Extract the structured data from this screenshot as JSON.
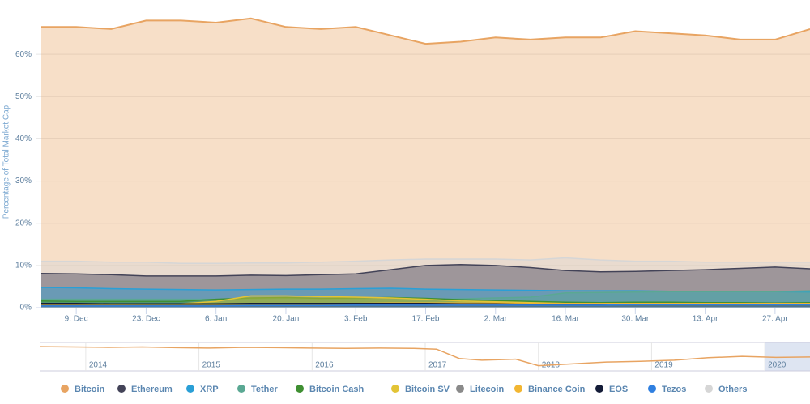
{
  "chart_data": {
    "type": "area",
    "y_axis_label": "Percentage of Total Market Cap",
    "categories": [
      null,
      "9. Dec",
      null,
      "23. Dec",
      null,
      "6. Jan",
      null,
      "20. Jan",
      null,
      "3. Feb",
      null,
      "17. Feb",
      null,
      "2. Mar",
      null,
      "16. Mar",
      null,
      "30. Mar",
      null,
      "13. Apr",
      null,
      "27. Apr",
      null
    ],
    "ylim": [
      0,
      70
    ],
    "yticks": [
      {
        "value": 0,
        "label": "0%"
      },
      {
        "value": 10,
        "label": "10%"
      },
      {
        "value": 20,
        "label": "20%"
      },
      {
        "value": 30,
        "label": "30%"
      },
      {
        "value": 40,
        "label": "40%"
      },
      {
        "value": 50,
        "label": "50%"
      },
      {
        "value": 60,
        "label": "60%"
      }
    ],
    "grid": true,
    "legend": "bottom",
    "series": [
      {
        "name": "Bitcoin",
        "color": "#e8a462",
        "values": [
          66.5,
          66.5,
          66,
          68,
          68,
          67.5,
          68.5,
          66.5,
          66,
          66.5,
          64.5,
          62.5,
          63,
          64,
          63.5,
          64,
          64,
          65.5,
          65,
          64.5,
          63.5,
          63.5,
          66
        ]
      },
      {
        "name": "Ethereum",
        "color": "#434358",
        "values": [
          8.1,
          8,
          7.8,
          7.5,
          7.5,
          7.5,
          7.7,
          7.6,
          7.8,
          8,
          9,
          10,
          10.2,
          10,
          9.5,
          8.8,
          8.5,
          8.6,
          8.8,
          9,
          9.3,
          9.6,
          9.2
        ]
      },
      {
        "name": "XRP",
        "color": "#2a9fd6",
        "values": [
          4.8,
          4.7,
          4.5,
          4.4,
          4.3,
          4.2,
          4.3,
          4.4,
          4.4,
          4.5,
          4.6,
          4.4,
          4.3,
          4.2,
          4.1,
          4,
          4,
          4,
          3.9,
          3.9,
          3.8,
          3.8,
          3.7
        ]
      },
      {
        "name": "Tether",
        "color": "#5aa893",
        "values": [
          2,
          2,
          2,
          2,
          2,
          2,
          2.1,
          2.2,
          2.2,
          2,
          1.8,
          1.9,
          2.1,
          2.3,
          2.5,
          3.5,
          3.6,
          3.7,
          3.8,
          3.8,
          3.8,
          3.8,
          4
        ]
      },
      {
        "name": "Bitcoin Cash",
        "color": "#3f8f32",
        "values": [
          1.6,
          1.5,
          1.5,
          1.5,
          1.5,
          2,
          2.3,
          2.4,
          2.2,
          2.3,
          2.4,
          2.2,
          1.9,
          1.7,
          1.5,
          1.3,
          1.2,
          1.3,
          1.3,
          1.2,
          1.2,
          1.1,
          1.2
        ]
      },
      {
        "name": "Bitcoin SV",
        "color": "#e3c436",
        "values": [
          0.7,
          0.7,
          0.7,
          0.8,
          0.9,
          1.5,
          2.8,
          2.8,
          2.6,
          2.5,
          2.3,
          2,
          1.6,
          1.4,
          1.2,
          1,
          1,
          1,
          0.9,
          0.9,
          0.9,
          0.9,
          0.9
        ]
      },
      {
        "name": "Litecoin",
        "color": "#8a8a8a",
        "values": [
          1.3,
          1.3,
          1.3,
          1.2,
          1.2,
          1.3,
          1.4,
          1.4,
          1.3,
          1.4,
          1.4,
          1.3,
          1.2,
          1.2,
          1.1,
          1.1,
          1.1,
          1.1,
          1.1,
          1.1,
          1.1,
          1.1,
          1.2
        ]
      },
      {
        "name": "Binance Coin",
        "color": "#f2b632",
        "values": [
          0.9,
          0.9,
          0.9,
          0.9,
          0.9,
          0.9,
          0.9,
          0.9,
          0.9,
          1,
          1.1,
          1.1,
          1.1,
          1.1,
          1,
          1,
          1,
          1,
          1,
          1,
          1,
          1,
          1
        ]
      },
      {
        "name": "EOS",
        "color": "#141c38",
        "values": [
          1,
          1,
          0.9,
          0.9,
          0.9,
          0.9,
          1,
          1,
          1,
          1,
          1,
          1,
          0.9,
          0.9,
          0.8,
          0.8,
          0.8,
          0.8,
          0.8,
          0.8,
          0.8,
          0.8,
          0.8
        ]
      },
      {
        "name": "Tezos",
        "color": "#2f7fe0",
        "values": [
          0.4,
          0.4,
          0.4,
          0.4,
          0.4,
          0.4,
          0.5,
          0.5,
          0.5,
          0.6,
          0.6,
          0.6,
          0.6,
          0.6,
          0.6,
          0.6,
          0.6,
          0.7,
          0.7,
          0.7,
          0.7,
          0.7,
          0.7
        ]
      },
      {
        "name": "Others",
        "color": "#d6d6d6",
        "values": [
          11,
          11,
          10.8,
          10.8,
          10.5,
          10.5,
          10.6,
          10.6,
          10.8,
          11,
          11.3,
          11.5,
          11.5,
          11.5,
          11.3,
          11.8,
          11.3,
          11,
          11,
          10.8,
          10.8,
          10.8,
          10.8
        ]
      }
    ],
    "navigator": {
      "xlim": [
        2013.6,
        2020.4
      ],
      "ylim": [
        30,
        100
      ],
      "xticks": [
        2014,
        2015,
        2016,
        2017,
        2018,
        2019,
        2020
      ],
      "x": [
        2013.6,
        2013.9,
        2014.2,
        2014.5,
        2014.8,
        2015.1,
        2015.4,
        2015.7,
        2016.0,
        2016.3,
        2016.6,
        2016.9,
        2017.1,
        2017.3,
        2017.5,
        2017.8,
        2018.0,
        2018.3,
        2018.6,
        2018.9,
        2019.2,
        2019.5,
        2019.8,
        2020.1,
        2020.4
      ],
      "values": [
        93,
        92,
        91,
        92,
        90,
        89,
        91,
        90,
        89,
        88,
        89,
        88,
        86,
        60,
        55,
        58,
        40,
        45,
        50,
        52,
        55,
        62,
        66,
        63,
        64
      ]
    }
  }
}
